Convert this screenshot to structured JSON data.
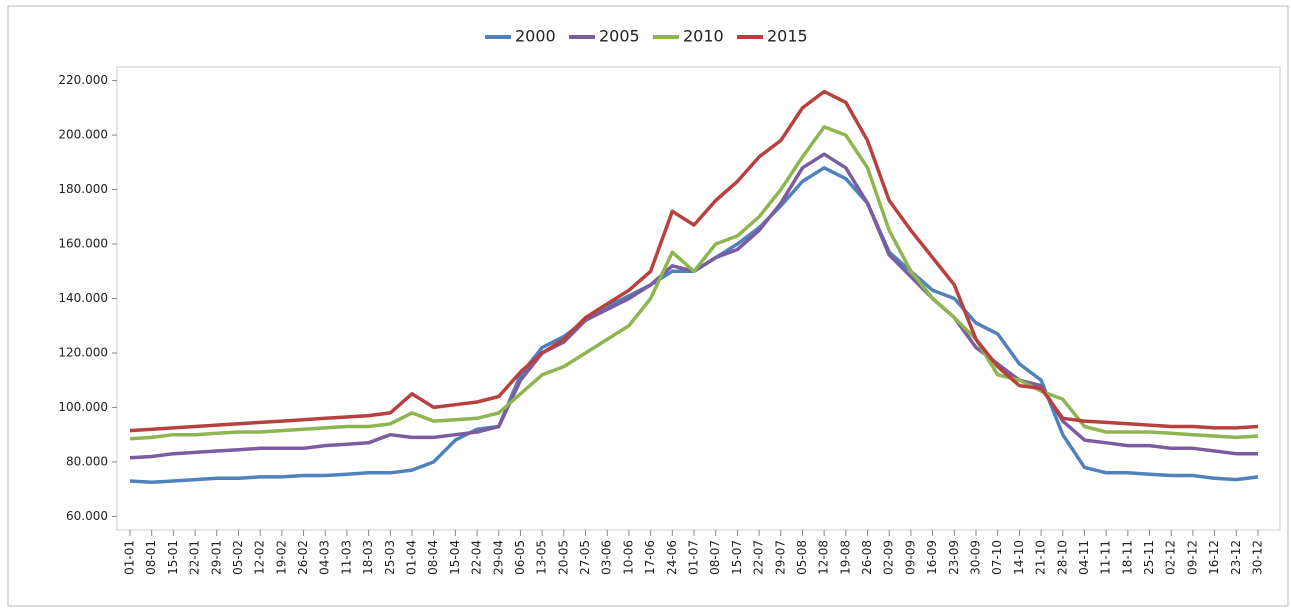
{
  "chart_data": {
    "type": "line",
    "categories": [
      "01-01",
      "08-01",
      "15-01",
      "22-01",
      "29-01",
      "05-02",
      "12-02",
      "19-02",
      "26-02",
      "04-03",
      "11-03",
      "18-03",
      "25-03",
      "01-04",
      "08-04",
      "15-04",
      "22-04",
      "29-04",
      "06-05",
      "13-05",
      "20-05",
      "27-05",
      "03-06",
      "10-06",
      "17-06",
      "24-06",
      "01-07",
      "08-07",
      "15-07",
      "22-07",
      "29-07",
      "05-08",
      "12-08",
      "19-08",
      "26-08",
      "02-09",
      "09-09",
      "16-09",
      "23-09",
      "30-09",
      "07-10",
      "14-10",
      "21-10",
      "28-10",
      "04-11",
      "11-11",
      "18-11",
      "25-11",
      "02-12",
      "09-12",
      "16-12",
      "23-12",
      "30-12"
    ],
    "series": [
      {
        "name": "2000",
        "color": "#4f81bd",
        "values": [
          73000,
          72500,
          73000,
          73500,
          74000,
          74000,
          74500,
          74500,
          75000,
          75000,
          75500,
          76000,
          76000,
          77000,
          80000,
          88000,
          92000,
          93000,
          112000,
          122000,
          126000,
          132000,
          137000,
          141000,
          145000,
          150000,
          150000,
          155000,
          160000,
          166000,
          174000,
          183000,
          188000,
          184000,
          175000,
          157000,
          150000,
          143000,
          140000,
          131000,
          127000,
          116000,
          110000,
          90000,
          78000,
          76000,
          76000,
          75500,
          75000,
          75000,
          74000,
          73500,
          74500
        ]
      },
      {
        "name": "2005",
        "color": "#7b5c9e",
        "values": [
          81500,
          82000,
          83000,
          83500,
          84000,
          84500,
          85000,
          85000,
          85000,
          86000,
          86500,
          87000,
          90000,
          89000,
          89000,
          90000,
          91000,
          93000,
          110000,
          120000,
          124000,
          132000,
          136000,
          140000,
          145000,
          152000,
          150000,
          155000,
          158000,
          165000,
          175000,
          188000,
          193000,
          188000,
          175000,
          156000,
          148000,
          140000,
          133000,
          122000,
          116000,
          110000,
          108000,
          95000,
          88000,
          87000,
          86000,
          86000,
          85000,
          85000,
          84000,
          83000,
          83000
        ]
      },
      {
        "name": "2010",
        "color": "#8fb551",
        "values": [
          88500,
          89000,
          90000,
          90000,
          90500,
          91000,
          91000,
          91500,
          92000,
          92500,
          93000,
          93000,
          94000,
          98000,
          95000,
          95500,
          96000,
          98000,
          105000,
          112000,
          115000,
          120000,
          125000,
          130000,
          140000,
          157000,
          150000,
          160000,
          163000,
          170000,
          180000,
          192000,
          203000,
          200000,
          188000,
          165000,
          150000,
          140000,
          133000,
          125000,
          112000,
          110000,
          106000,
          103000,
          93000,
          91000,
          91000,
          91000,
          90500,
          90000,
          89500,
          89000,
          89500
        ]
      },
      {
        "name": "2015",
        "color": "#b8403e",
        "values": [
          91500,
          92000,
          92500,
          93000,
          93500,
          94000,
          94500,
          95000,
          95500,
          96000,
          96500,
          97000,
          98000,
          105000,
          100000,
          101000,
          102000,
          104000,
          113000,
          120000,
          125000,
          133000,
          138000,
          143000,
          150000,
          172000,
          167000,
          176000,
          183000,
          192000,
          198000,
          210000,
          216000,
          212000,
          198000,
          176000,
          165000,
          155000,
          145000,
          125000,
          115000,
          108000,
          107000,
          96000,
          95000,
          94500,
          94000,
          93500,
          93000,
          93000,
          92500,
          92500,
          93000
        ]
      }
    ],
    "ylim": [
      55000,
      225000
    ],
    "yticks": [
      {
        "value": 60000,
        "label": "60.000"
      },
      {
        "value": 80000,
        "label": "80.000"
      },
      {
        "value": 100000,
        "label": "100.000"
      },
      {
        "value": 120000,
        "label": "120.000"
      },
      {
        "value": 140000,
        "label": "140.000"
      },
      {
        "value": 160000,
        "label": "160.000"
      },
      {
        "value": 180000,
        "label": "180.000"
      },
      {
        "value": 200000,
        "label": "200.000"
      },
      {
        "value": 220000,
        "label": "220.000"
      }
    ],
    "legend": "top"
  }
}
